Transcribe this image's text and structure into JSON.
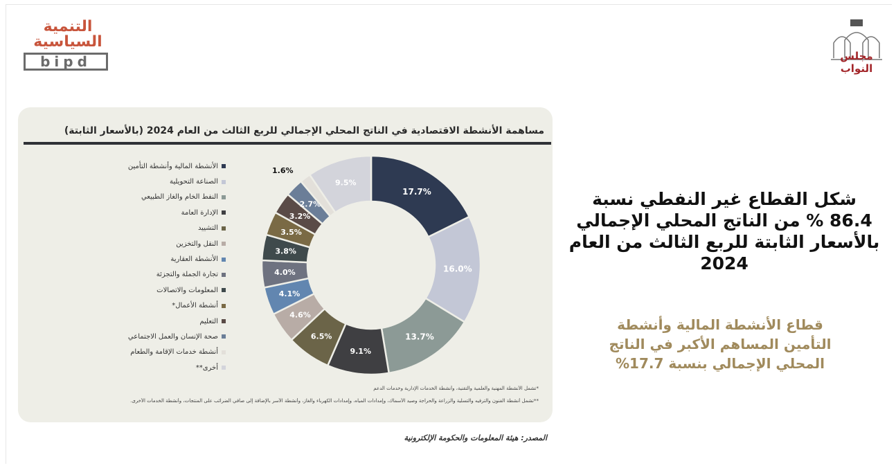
{
  "logos": {
    "left_arabic_line1": "التنمية",
    "left_arabic_line2": "السياسية",
    "left_latin": "bipd",
    "right_name": "مجلس النواب"
  },
  "headline": "شكل القطاع غير النفطي نسبة 86.4 % من الناتج المحلي الإجمالي بالأسعار الثابتة للربع الثالث من العام 2024",
  "subline": "قطاع الأنشطة المالية وأنشطة التأمين المساهم الأكبر في الناتج المحلي الإجمالي بنسبة 17.7%",
  "source": "المصدر: هيئة المعلومات والحكومة الإلكترونية",
  "footnotes": [
    "*تشمل الأنشطة المهنية والعلمية والتقنية، وأنشطة الخدمات الإدارية وخدمات الدعم",
    "**تشمل أنشطة الفنون والترفيه والتسلية والزراعة والحراجة وصيد الأسماك، وإمدادات المياه، وإمدادات الكهرباء والغاز، وأنشطة الأسر بالإضافة إلى صافي الضرائب على المنتجات، وأنشطة الخدمات الأخرى."
  ],
  "chart_data": {
    "type": "pie",
    "variant": "donut",
    "title": "مساهمة الأنشطة الاقتصادية في الناتج المحلي الإجمالي للربع الثالث من العام 2024 (بالأسعار الثابتة)",
    "unit": "%",
    "legend_position": "left",
    "slices": [
      {
        "label": "الأنشطة المالية وأنشطة التأمين",
        "value": 17.7,
        "display": "17.7%",
        "color": "#2e3a52"
      },
      {
        "label": "الصناعة التحويلية",
        "value": 16.0,
        "display": "16.0%",
        "color": "#c3c7d6"
      },
      {
        "label": "النفط الخام والغاز الطبيعي",
        "value": 13.7,
        "display": "13.7%",
        "color": "#8c9a96"
      },
      {
        "label": "الإدارة العامة",
        "value": 9.1,
        "display": "9.1%",
        "color": "#3f3f42"
      },
      {
        "label": "التشييد",
        "value": 6.5,
        "display": "6.5%",
        "color": "#6b6448"
      },
      {
        "label": "النقل والتخزين",
        "value": 4.6,
        "display": "4.6%",
        "color": "#b8aca6"
      },
      {
        "label": "الأنشطة العقارية",
        "value": 4.1,
        "display": "4.1%",
        "color": "#6286b0"
      },
      {
        "label": "تجارة الجملة والتجزئة",
        "value": 4.0,
        "display": "4.0%",
        "color": "#6e7280"
      },
      {
        "label": "المعلومات والاتصالات",
        "value": 3.8,
        "display": "3.8%",
        "color": "#3f4a4c"
      },
      {
        "label": "أنشطة الأعمال*",
        "value": 3.5,
        "display": "3.5%",
        "color": "#7a6a45"
      },
      {
        "label": "التعليم",
        "value": 3.2,
        "display": "3.2%",
        "color": "#5a4b47"
      },
      {
        "label": "صحة الإنسان والعمل الاجتماعي",
        "value": 2.7,
        "display": "2.7%",
        "color": "#6b7e98"
      },
      {
        "label": "أنشطة خدمات الإقامة والطعام",
        "value": 1.6,
        "display": "1.6%",
        "color": "#e3e0da"
      },
      {
        "label": "أخرى**",
        "value": 9.5,
        "display": "9.5%",
        "color": "#d3d4db"
      }
    ]
  }
}
